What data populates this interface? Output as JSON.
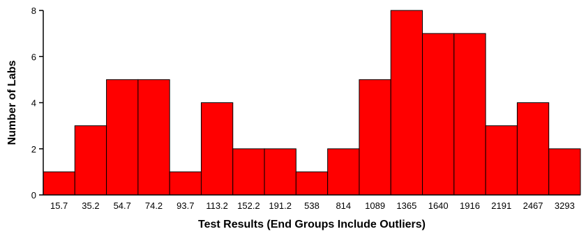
{
  "chart_data": {
    "type": "bar",
    "title": "",
    "xlabel": "Test Results (End Groups Include Outliers)",
    "ylabel": "Number of Labs",
    "categories": [
      "15.7",
      "35.2",
      "54.7",
      "74.2",
      "93.7",
      "113.2",
      "152.2",
      "191.2",
      "538",
      "814",
      "1089",
      "1365",
      "1640",
      "1916",
      "2191",
      "2467",
      "3293"
    ],
    "values": [
      1,
      3,
      5,
      5,
      1,
      4,
      2,
      2,
      1,
      2,
      5,
      8,
      7,
      7,
      3,
      4,
      2
    ],
    "ylim": [
      0,
      8
    ],
    "yticks": [
      0,
      2,
      4,
      6,
      8
    ],
    "grid": false,
    "legend": "none",
    "bar_color": "#ff0000",
    "edge_color": "#000000"
  }
}
